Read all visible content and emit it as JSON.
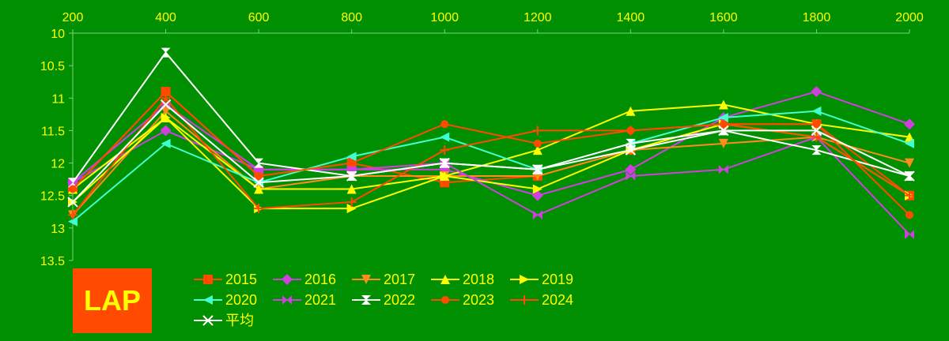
{
  "chart_data": {
    "type": "line",
    "x": [
      200,
      400,
      600,
      800,
      1000,
      1200,
      1400,
      1600,
      1800,
      2000
    ],
    "y_ticks": [
      10,
      10.5,
      11,
      11.5,
      12,
      12.5,
      13,
      13.5
    ],
    "ylim": [
      10,
      13.5
    ],
    "y_inverted": true,
    "x_axis_position": "top",
    "grid": false,
    "legend_position": "bottom-left",
    "logo_text": "LAP",
    "colors": {
      "background": "#008f00",
      "text": "#ffff00",
      "axis": "#7fd07f",
      "logo_bg": "#ff4a00"
    },
    "series": [
      {
        "name": "2015",
        "color": "#ff4a00",
        "marker": "square",
        "values": [
          12.4,
          10.9,
          12.2,
          12.0,
          12.3,
          12.2,
          11.8,
          11.4,
          11.4,
          12.5
        ]
      },
      {
        "name": "2016",
        "color": "#d040e0",
        "marker": "diamond",
        "values": [
          12.3,
          11.5,
          12.1,
          12.1,
          12.1,
          12.5,
          12.1,
          11.3,
          10.9,
          11.4
        ]
      },
      {
        "name": "2017",
        "color": "#ff8c1a",
        "marker": "triangle-down",
        "values": [
          12.8,
          11.2,
          12.4,
          12.2,
          12.2,
          12.2,
          11.8,
          11.7,
          11.6,
          12.0
        ]
      },
      {
        "name": "2018",
        "color": "#ffff00",
        "marker": "triangle-up",
        "values": [
          12.4,
          11.3,
          12.4,
          12.4,
          12.2,
          11.8,
          11.2,
          11.1,
          11.4,
          11.6
        ]
      },
      {
        "name": "2019",
        "color": "#ffff00",
        "marker": "triangle-right",
        "values": [
          12.6,
          11.3,
          12.7,
          12.7,
          12.2,
          12.4,
          11.8,
          11.4,
          11.6,
          12.5
        ]
      },
      {
        "name": "2020",
        "color": "#40ffd0",
        "marker": "triangle-left",
        "values": [
          12.9,
          11.7,
          12.3,
          11.9,
          11.6,
          12.1,
          11.7,
          11.3,
          11.2,
          11.7
        ]
      },
      {
        "name": "2021",
        "color": "#d040e0",
        "marker": "bowtie",
        "values": [
          12.3,
          11.1,
          12.1,
          12.1,
          12.0,
          12.8,
          12.2,
          12.1,
          11.6,
          13.1
        ]
      },
      {
        "name": "2022",
        "color": "#ffffff",
        "marker": "hourglass",
        "values": [
          12.3,
          10.3,
          12.0,
          12.2,
          12.0,
          12.1,
          11.7,
          11.5,
          11.8,
          12.2
        ]
      },
      {
        "name": "2023",
        "color": "#ff4a00",
        "marker": "circle",
        "values": [
          12.4,
          10.9,
          12.2,
          12.0,
          11.4,
          11.7,
          11.5,
          11.4,
          11.4,
          12.8
        ]
      },
      {
        "name": "2024",
        "color": "#ff4a00",
        "marker": "plus",
        "values": [
          12.8,
          11.0,
          12.7,
          12.6,
          11.8,
          11.5,
          11.5,
          11.4,
          11.6,
          12.5
        ]
      },
      {
        "name": "平均",
        "color": "#ffffff",
        "marker": "x",
        "values": [
          12.6,
          11.1,
          12.3,
          12.2,
          12.0,
          12.1,
          11.8,
          11.5,
          11.5,
          12.2
        ]
      }
    ]
  }
}
